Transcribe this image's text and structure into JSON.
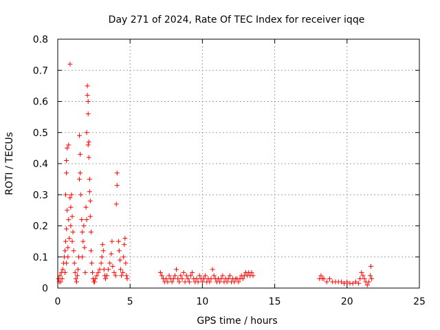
{
  "chart_data": {
    "type": "scatter",
    "title": "Day 271 of 2024, Rate Of TEC Index for receiver iqqe",
    "xlabel": "GPS time / hours",
    "ylabel": "ROTI / TECUs",
    "xlim": [
      0,
      25
    ],
    "ylim": [
      0,
      0.8
    ],
    "xticks": [
      "0",
      "5",
      "10",
      "15",
      "20",
      "25"
    ],
    "yticks": [
      "0",
      "0.1",
      "0.2",
      "0.3",
      "0.4",
      "0.5",
      "0.6",
      "0.7",
      "0.8"
    ],
    "grid": true,
    "marker": "plus",
    "color": "#ff0000",
    "series": [
      {
        "name": "ROTI",
        "points": [
          [
            0.05,
            0.03
          ],
          [
            0.1,
            0.02
          ],
          [
            0.15,
            0.04
          ],
          [
            0.2,
            0.02
          ],
          [
            0.25,
            0.05
          ],
          [
            0.3,
            0.03
          ],
          [
            0.35,
            0.06
          ],
          [
            0.4,
            0.08
          ],
          [
            0.45,
            0.1
          ],
          [
            0.5,
            0.12
          ],
          [
            0.5,
            0.05
          ],
          [
            0.55,
            0.15
          ],
          [
            0.55,
            0.3
          ],
          [
            0.6,
            0.08
          ],
          [
            0.6,
            0.19
          ],
          [
            0.6,
            0.37
          ],
          [
            0.6,
            0.41
          ],
          [
            0.65,
            0.45
          ],
          [
            0.65,
            0.25
          ],
          [
            0.7,
            0.1
          ],
          [
            0.7,
            0.13
          ],
          [
            0.75,
            0.46
          ],
          [
            0.75,
            0.22
          ],
          [
            0.8,
            0.16
          ],
          [
            0.85,
            0.72
          ],
          [
            0.85,
            0.29
          ],
          [
            0.9,
            0.26
          ],
          [
            0.9,
            0.2
          ],
          [
            0.95,
            0.3
          ],
          [
            1.0,
            0.23
          ],
          [
            1.0,
            0.15
          ],
          [
            1.05,
            0.18
          ],
          [
            1.1,
            0.12
          ],
          [
            1.15,
            0.08
          ],
          [
            1.2,
            0.05
          ],
          [
            1.25,
            0.03
          ],
          [
            1.3,
            0.02
          ],
          [
            1.35,
            0.04
          ],
          [
            1.4,
            0.06
          ],
          [
            1.45,
            0.1
          ],
          [
            1.5,
            0.35
          ],
          [
            1.5,
            0.49
          ],
          [
            1.55,
            0.43
          ],
          [
            1.55,
            0.37
          ],
          [
            1.6,
            0.3
          ],
          [
            1.65,
            0.22
          ],
          [
            1.7,
            0.18
          ],
          [
            1.7,
            0.1
          ],
          [
            1.75,
            0.15
          ],
          [
            1.8,
            0.2
          ],
          [
            1.85,
            0.13
          ],
          [
            1.9,
            0.05
          ],
          [
            1.95,
            0.26
          ],
          [
            2.0,
            0.22
          ],
          [
            2.0,
            0.5
          ],
          [
            2.05,
            0.65
          ],
          [
            2.05,
            0.62
          ],
          [
            2.1,
            0.6
          ],
          [
            2.1,
            0.56
          ],
          [
            2.1,
            0.46
          ],
          [
            2.15,
            0.47
          ],
          [
            2.15,
            0.42
          ],
          [
            2.2,
            0.35
          ],
          [
            2.2,
            0.31
          ],
          [
            2.25,
            0.28
          ],
          [
            2.25,
            0.23
          ],
          [
            2.3,
            0.18
          ],
          [
            2.3,
            0.12
          ],
          [
            2.35,
            0.08
          ],
          [
            2.4,
            0.05
          ],
          [
            2.45,
            0.03
          ],
          [
            2.5,
            0.02
          ],
          [
            2.55,
            0.02
          ],
          [
            2.6,
            0.03
          ],
          [
            2.7,
            0.04
          ],
          [
            2.8,
            0.05
          ],
          [
            2.9,
            0.06
          ],
          [
            3.0,
            0.08
          ],
          [
            3.05,
            0.1
          ],
          [
            3.1,
            0.14
          ],
          [
            3.15,
            0.12
          ],
          [
            3.2,
            0.06
          ],
          [
            3.25,
            0.04
          ],
          [
            3.3,
            0.03
          ],
          [
            3.4,
            0.04
          ],
          [
            3.5,
            0.06
          ],
          [
            3.6,
            0.08
          ],
          [
            3.7,
            0.11
          ],
          [
            3.75,
            0.15
          ],
          [
            3.8,
            0.07
          ],
          [
            3.9,
            0.05
          ],
          [
            4.0,
            0.04
          ],
          [
            4.05,
            0.27
          ],
          [
            4.1,
            0.33
          ],
          [
            4.1,
            0.37
          ],
          [
            4.2,
            0.15
          ],
          [
            4.25,
            0.12
          ],
          [
            4.3,
            0.09
          ],
          [
            4.35,
            0.06
          ],
          [
            4.4,
            0.04
          ],
          [
            4.5,
            0.05
          ],
          [
            4.55,
            0.1
          ],
          [
            4.6,
            0.14
          ],
          [
            4.65,
            0.16
          ],
          [
            4.7,
            0.08
          ],
          [
            4.75,
            0.04
          ],
          [
            4.8,
            0.03
          ],
          [
            7.1,
            0.05
          ],
          [
            7.2,
            0.04
          ],
          [
            7.3,
            0.03
          ],
          [
            7.4,
            0.02
          ],
          [
            7.5,
            0.03
          ],
          [
            7.6,
            0.02
          ],
          [
            7.7,
            0.04
          ],
          [
            7.8,
            0.03
          ],
          [
            7.9,
            0.02
          ],
          [
            8.0,
            0.03
          ],
          [
            8.1,
            0.04
          ],
          [
            8.2,
            0.06
          ],
          [
            8.3,
            0.03
          ],
          [
            8.4,
            0.02
          ],
          [
            8.5,
            0.04
          ],
          [
            8.6,
            0.03
          ],
          [
            8.7,
            0.05
          ],
          [
            8.8,
            0.02
          ],
          [
            8.9,
            0.04
          ],
          [
            9.0,
            0.03
          ],
          [
            9.1,
            0.02
          ],
          [
            9.2,
            0.04
          ],
          [
            9.3,
            0.05
          ],
          [
            9.4,
            0.03
          ],
          [
            9.5,
            0.02
          ],
          [
            9.6,
            0.03
          ],
          [
            9.7,
            0.02
          ],
          [
            9.8,
            0.04
          ],
          [
            9.9,
            0.03
          ],
          [
            10.0,
            0.02
          ],
          [
            10.1,
            0.03
          ],
          [
            10.2,
            0.04
          ],
          [
            10.3,
            0.02
          ],
          [
            10.4,
            0.03
          ],
          [
            10.5,
            0.02
          ],
          [
            10.6,
            0.03
          ],
          [
            10.7,
            0.06
          ],
          [
            10.8,
            0.04
          ],
          [
            10.9,
            0.03
          ],
          [
            11.0,
            0.02
          ],
          [
            11.1,
            0.03
          ],
          [
            11.2,
            0.02
          ],
          [
            11.3,
            0.03
          ],
          [
            11.4,
            0.04
          ],
          [
            11.5,
            0.02
          ],
          [
            11.6,
            0.03
          ],
          [
            11.7,
            0.02
          ],
          [
            11.8,
            0.03
          ],
          [
            11.9,
            0.04
          ],
          [
            12.0,
            0.02
          ],
          [
            12.1,
            0.03
          ],
          [
            12.2,
            0.02
          ],
          [
            12.3,
            0.03
          ],
          [
            12.4,
            0.03
          ],
          [
            12.5,
            0.02
          ],
          [
            12.6,
            0.03
          ],
          [
            12.7,
            0.04
          ],
          [
            12.8,
            0.03
          ],
          [
            12.9,
            0.04
          ],
          [
            13.0,
            0.05
          ],
          [
            13.1,
            0.04
          ],
          [
            13.2,
            0.05
          ],
          [
            13.3,
            0.04
          ],
          [
            13.4,
            0.05
          ],
          [
            13.5,
            0.04
          ],
          [
            18.1,
            0.03
          ],
          [
            18.2,
            0.04
          ],
          [
            18.3,
            0.03
          ],
          [
            18.4,
            0.03
          ],
          [
            18.6,
            0.02
          ],
          [
            18.8,
            0.03
          ],
          [
            19.0,
            0.02
          ],
          [
            19.2,
            0.02
          ],
          [
            19.4,
            0.02
          ],
          [
            19.6,
            0.02
          ],
          [
            19.8,
            0.015
          ],
          [
            20.0,
            0.02
          ],
          [
            20.2,
            0.015
          ],
          [
            20.4,
            0.015
          ],
          [
            20.6,
            0.02
          ],
          [
            20.8,
            0.015
          ],
          [
            20.9,
            0.03
          ],
          [
            21.0,
            0.05
          ],
          [
            21.1,
            0.04
          ],
          [
            21.2,
            0.03
          ],
          [
            21.3,
            0.02
          ],
          [
            21.4,
            0.01
          ],
          [
            21.5,
            0.02
          ],
          [
            21.6,
            0.04
          ],
          [
            21.65,
            0.07
          ],
          [
            21.7,
            0.03
          ]
        ]
      }
    ]
  }
}
